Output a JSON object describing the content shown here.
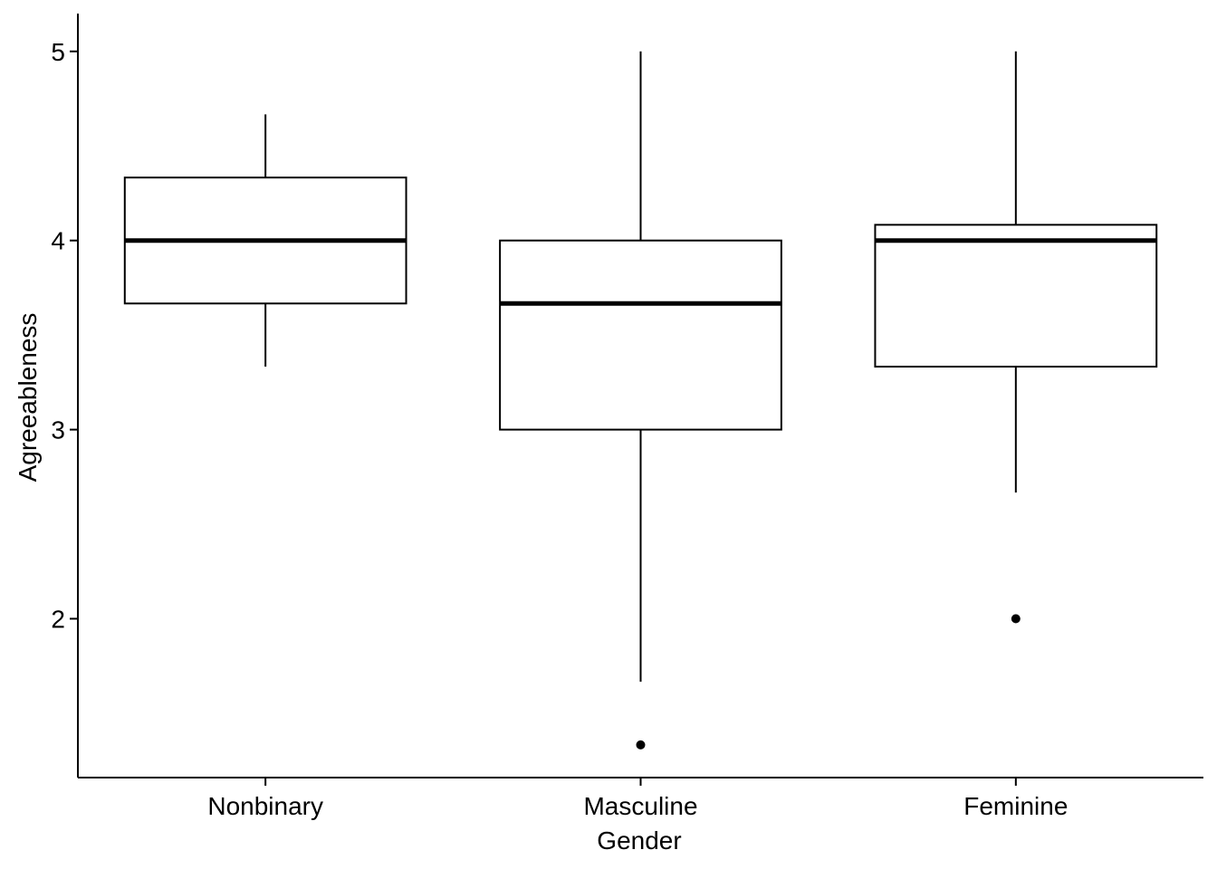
{
  "chart_data": {
    "type": "boxplot",
    "xlabel": "Gender",
    "ylabel": "Agreeableness",
    "categories": [
      "Nonbinary",
      "Masculine",
      "Feminine"
    ],
    "y_ticks": [
      2,
      3,
      4,
      5
    ],
    "ylim": [
      1.16,
      5.2
    ],
    "grid": false,
    "legend": "none",
    "boxes": [
      {
        "category": "Nonbinary",
        "whisker_low": 3.333,
        "q1": 3.667,
        "median": 4.0,
        "q3": 4.333,
        "whisker_high": 4.667,
        "outliers": []
      },
      {
        "category": "Masculine",
        "whisker_low": 1.667,
        "q1": 3.0,
        "median": 3.667,
        "q3": 4.0,
        "whisker_high": 5.0,
        "outliers": [
          1.333
        ]
      },
      {
        "category": "Feminine",
        "whisker_low": 2.667,
        "q1": 3.333,
        "median": 4.0,
        "q3": 4.083,
        "whisker_high": 5.0,
        "outliers": [
          2.0
        ]
      }
    ],
    "colors": {
      "box_fill": "#ffffff",
      "stroke": "#000000",
      "outlier": "#000000"
    }
  }
}
